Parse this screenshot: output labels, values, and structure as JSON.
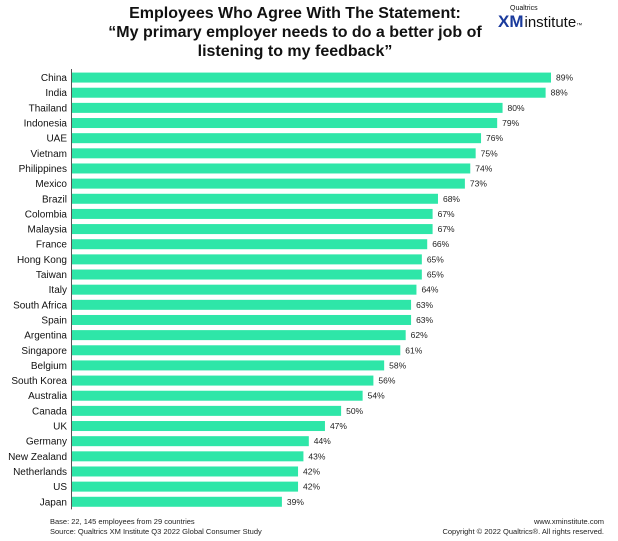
{
  "title": {
    "line1": "Employees Who Agree With The Statement:",
    "line2": "“My primary employer needs to do a better job of",
    "line3": "listening to my feedback”"
  },
  "logo": {
    "brand": "Qualtrics",
    "xm": "XM",
    "institute": "institute",
    "tm": "™"
  },
  "footer": {
    "base": "Base: 22, 145 employees from 29 countries",
    "source": "Source: Qualtrics XM Institute Q3 2022 Global Consumer Study",
    "website": "www.xminstitute.com",
    "copyright": "Copyright © 2022 Qualtrics®. All rights reserved."
  },
  "chart_data": {
    "type": "bar",
    "orientation": "horizontal",
    "bar_color": "#2ee6a8",
    "value_suffix": "%",
    "categories": [
      "China",
      "India",
      "Thailand",
      "Indonesia",
      "UAE",
      "Vietnam",
      "Philippines",
      "Mexico",
      "Brazil",
      "Colombia",
      "Malaysia",
      "France",
      "Hong Kong",
      "Taiwan",
      "Italy",
      "South Africa",
      "Spain",
      "Argentina",
      "Singapore",
      "Belgium",
      "South Korea",
      "Australia",
      "Canada",
      "UK",
      "Germany",
      "New Zealand",
      "Netherlands",
      "US",
      "Japan"
    ],
    "values": [
      89,
      88,
      80,
      79,
      76,
      75,
      74,
      73,
      68,
      67,
      67,
      66,
      65,
      65,
      64,
      63,
      63,
      62,
      61,
      58,
      56,
      54,
      50,
      47,
      44,
      43,
      42,
      42,
      39
    ],
    "xlim": [
      0,
      89
    ],
    "grid": false,
    "legend": "none"
  }
}
